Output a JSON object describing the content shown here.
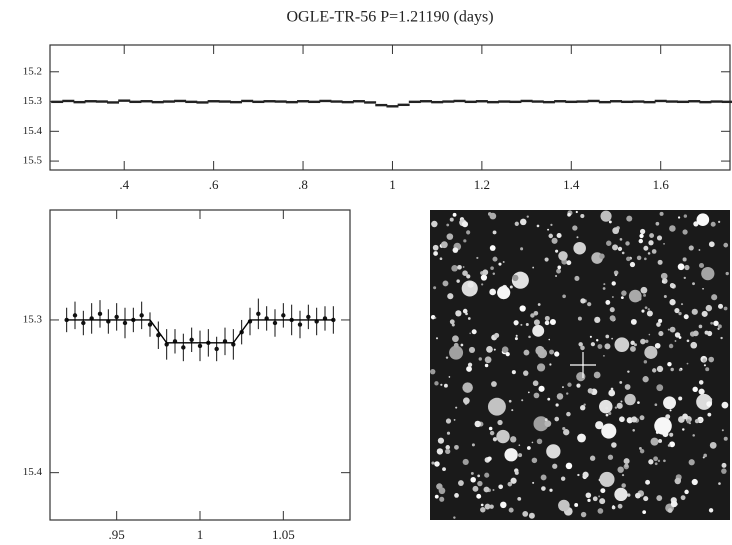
{
  "chart_data": [
    {
      "type": "scatter",
      "title": "OGLE-TR-56  P=1.21190 (days)",
      "xlim": [
        0.234,
        1.755
      ],
      "ylim": [
        15.53,
        15.11
      ],
      "xticks": [
        {
          "value": 0.4,
          "label": ".4"
        },
        {
          "value": 0.6,
          "label": ".6"
        },
        {
          "value": 0.8,
          "label": ".8"
        },
        1,
        1.2,
        1.4,
        1.6
      ],
      "yticks": [
        15.2,
        15.3,
        15.4,
        15.5
      ],
      "series": [
        {
          "color": "#222222",
          "marker": "dot",
          "x": [
            0.25,
            0.275,
            0.3,
            0.325,
            0.35,
            0.375,
            0.4,
            0.425,
            0.45,
            0.475,
            0.5,
            0.525,
            0.55,
            0.575,
            0.6,
            0.625,
            0.65,
            0.675,
            0.7,
            0.725,
            0.75,
            0.775,
            0.8,
            0.825,
            0.85,
            0.875,
            0.9,
            0.925,
            0.95,
            0.975,
            1.0,
            1.025,
            1.05,
            1.075,
            1.1,
            1.125,
            1.15,
            1.175,
            1.2,
            1.225,
            1.25,
            1.275,
            1.3,
            1.325,
            1.35,
            1.375,
            1.4,
            1.425,
            1.45,
            1.475,
            1.5,
            1.525,
            1.55,
            1.575,
            1.6,
            1.625,
            1.65,
            1.675,
            1.7,
            1.725,
            1.75
          ],
          "values": [
            15.301,
            15.298,
            15.302,
            15.299,
            15.3,
            15.303,
            15.297,
            15.301,
            15.299,
            15.302,
            15.3,
            15.298,
            15.301,
            15.303,
            15.299,
            15.3,
            15.302,
            15.298,
            15.301,
            15.299,
            15.3,
            15.302,
            15.299,
            15.301,
            15.298,
            15.3,
            15.302,
            15.299,
            15.303,
            15.312,
            15.316,
            15.311,
            15.301,
            15.299,
            15.302,
            15.3,
            15.298,
            15.301,
            15.299,
            15.302,
            15.3,
            15.301,
            15.298,
            15.3,
            15.302,
            15.299,
            15.301,
            15.3,
            15.298,
            15.302,
            15.299,
            15.301,
            15.3,
            15.302,
            15.298,
            15.3,
            15.301,
            15.299,
            15.302,
            15.3,
            15.301
          ]
        }
      ]
    },
    {
      "type": "errorbar",
      "xlim": [
        0.91,
        1.09
      ],
      "ylim": [
        15.431,
        15.228
      ],
      "xticks": [
        {
          "value": 0.95,
          "label": ".95"
        },
        1,
        1.05
      ],
      "yticks": [
        15.3,
        15.4
      ],
      "series": [
        {
          "color": "#111111",
          "marker": "dot",
          "x": [
            0.92,
            0.925,
            0.93,
            0.935,
            0.94,
            0.945,
            0.95,
            0.955,
            0.96,
            0.965,
            0.97,
            0.975,
            0.98,
            0.985,
            0.99,
            0.995,
            1.0,
            1.005,
            1.01,
            1.015,
            1.02,
            1.025,
            1.03,
            1.035,
            1.04,
            1.045,
            1.05,
            1.055,
            1.06,
            1.065,
            1.07,
            1.075,
            1.08
          ],
          "values": [
            15.3,
            15.297,
            15.302,
            15.299,
            15.296,
            15.301,
            15.298,
            15.302,
            15.3,
            15.297,
            15.303,
            15.31,
            15.316,
            15.314,
            15.318,
            15.313,
            15.317,
            15.315,
            15.319,
            15.314,
            15.316,
            15.308,
            15.301,
            15.296,
            15.299,
            15.302,
            15.297,
            15.3,
            15.303,
            15.298,
            15.301,
            15.299,
            15.3
          ],
          "errors": [
            0.008,
            0.009,
            0.008,
            0.01,
            0.009,
            0.008,
            0.009,
            0.01,
            0.008,
            0.009,
            0.008,
            0.009,
            0.01,
            0.008,
            0.009,
            0.008,
            0.01,
            0.009,
            0.008,
            0.009,
            0.01,
            0.008,
            0.009,
            0.01,
            0.008,
            0.009,
            0.008,
            0.01,
            0.009,
            0.008,
            0.009,
            0.008,
            0.009
          ]
        },
        {
          "color": "#000000",
          "marker": "line",
          "x": [
            0.92,
            0.97,
            0.98,
            1.02,
            1.03,
            1.08
          ],
          "values": [
            15.3,
            15.3,
            15.315,
            15.315,
            15.3,
            15.3
          ]
        }
      ]
    }
  ]
}
